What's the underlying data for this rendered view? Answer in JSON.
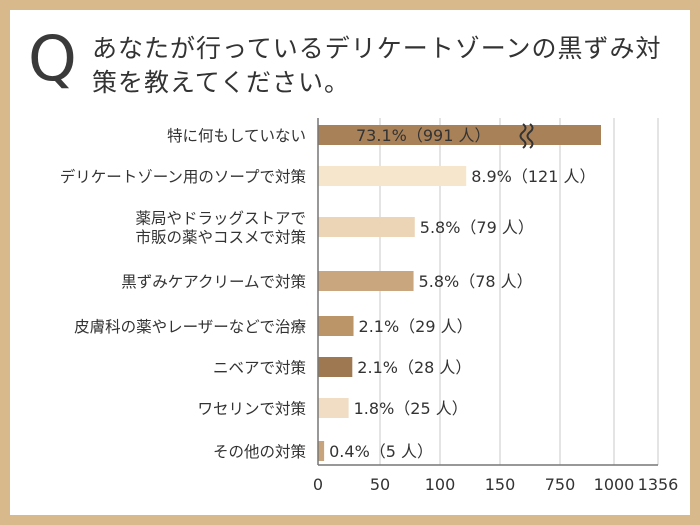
{
  "header": {
    "q_mark": "Q",
    "question": "あなたが行っているデリケートゾーンの黒ずみ対策を教えてください。"
  },
  "chart_data": {
    "type": "bar",
    "orientation": "horizontal",
    "categories": [
      [
        "特に何もしていない"
      ],
      [
        "デリケートゾーン用のソープで対策"
      ],
      [
        "薬局やドラッグストアで",
        "市販の薬やコスメで対策"
      ],
      [
        "黒ずみケアクリームで対策"
      ],
      [
        "皮膚科の薬やレーザーなどで治療"
      ],
      [
        "ニベアで対策"
      ],
      [
        "ワセリンで対策"
      ],
      [
        "その他の対策"
      ]
    ],
    "values": [
      991,
      121,
      79,
      78,
      29,
      28,
      25,
      5
    ],
    "data_labels": [
      "73.1%（991 人）",
      "8.9%（121 人）",
      "5.8%（79 人）",
      "5.8%（78 人）",
      "2.1%（29 人）",
      "2.1%（28 人）",
      "1.8%（25 人）",
      "0.4%（5 人）"
    ],
    "bar_colors": [
      "#a88158",
      "#f6e6cc",
      "#ecd5b6",
      "#caa67e",
      "#bb9468",
      "#9e7850",
      "#f1ddc3",
      "#c8a47c"
    ],
    "x_ticks": [
      "0",
      "50",
      "100",
      "150",
      "750",
      "1000",
      "1356"
    ],
    "x_tick_values": [
      0,
      50,
      100,
      150,
      750,
      1000,
      1356
    ],
    "axis_break": true,
    "grid": true
  }
}
